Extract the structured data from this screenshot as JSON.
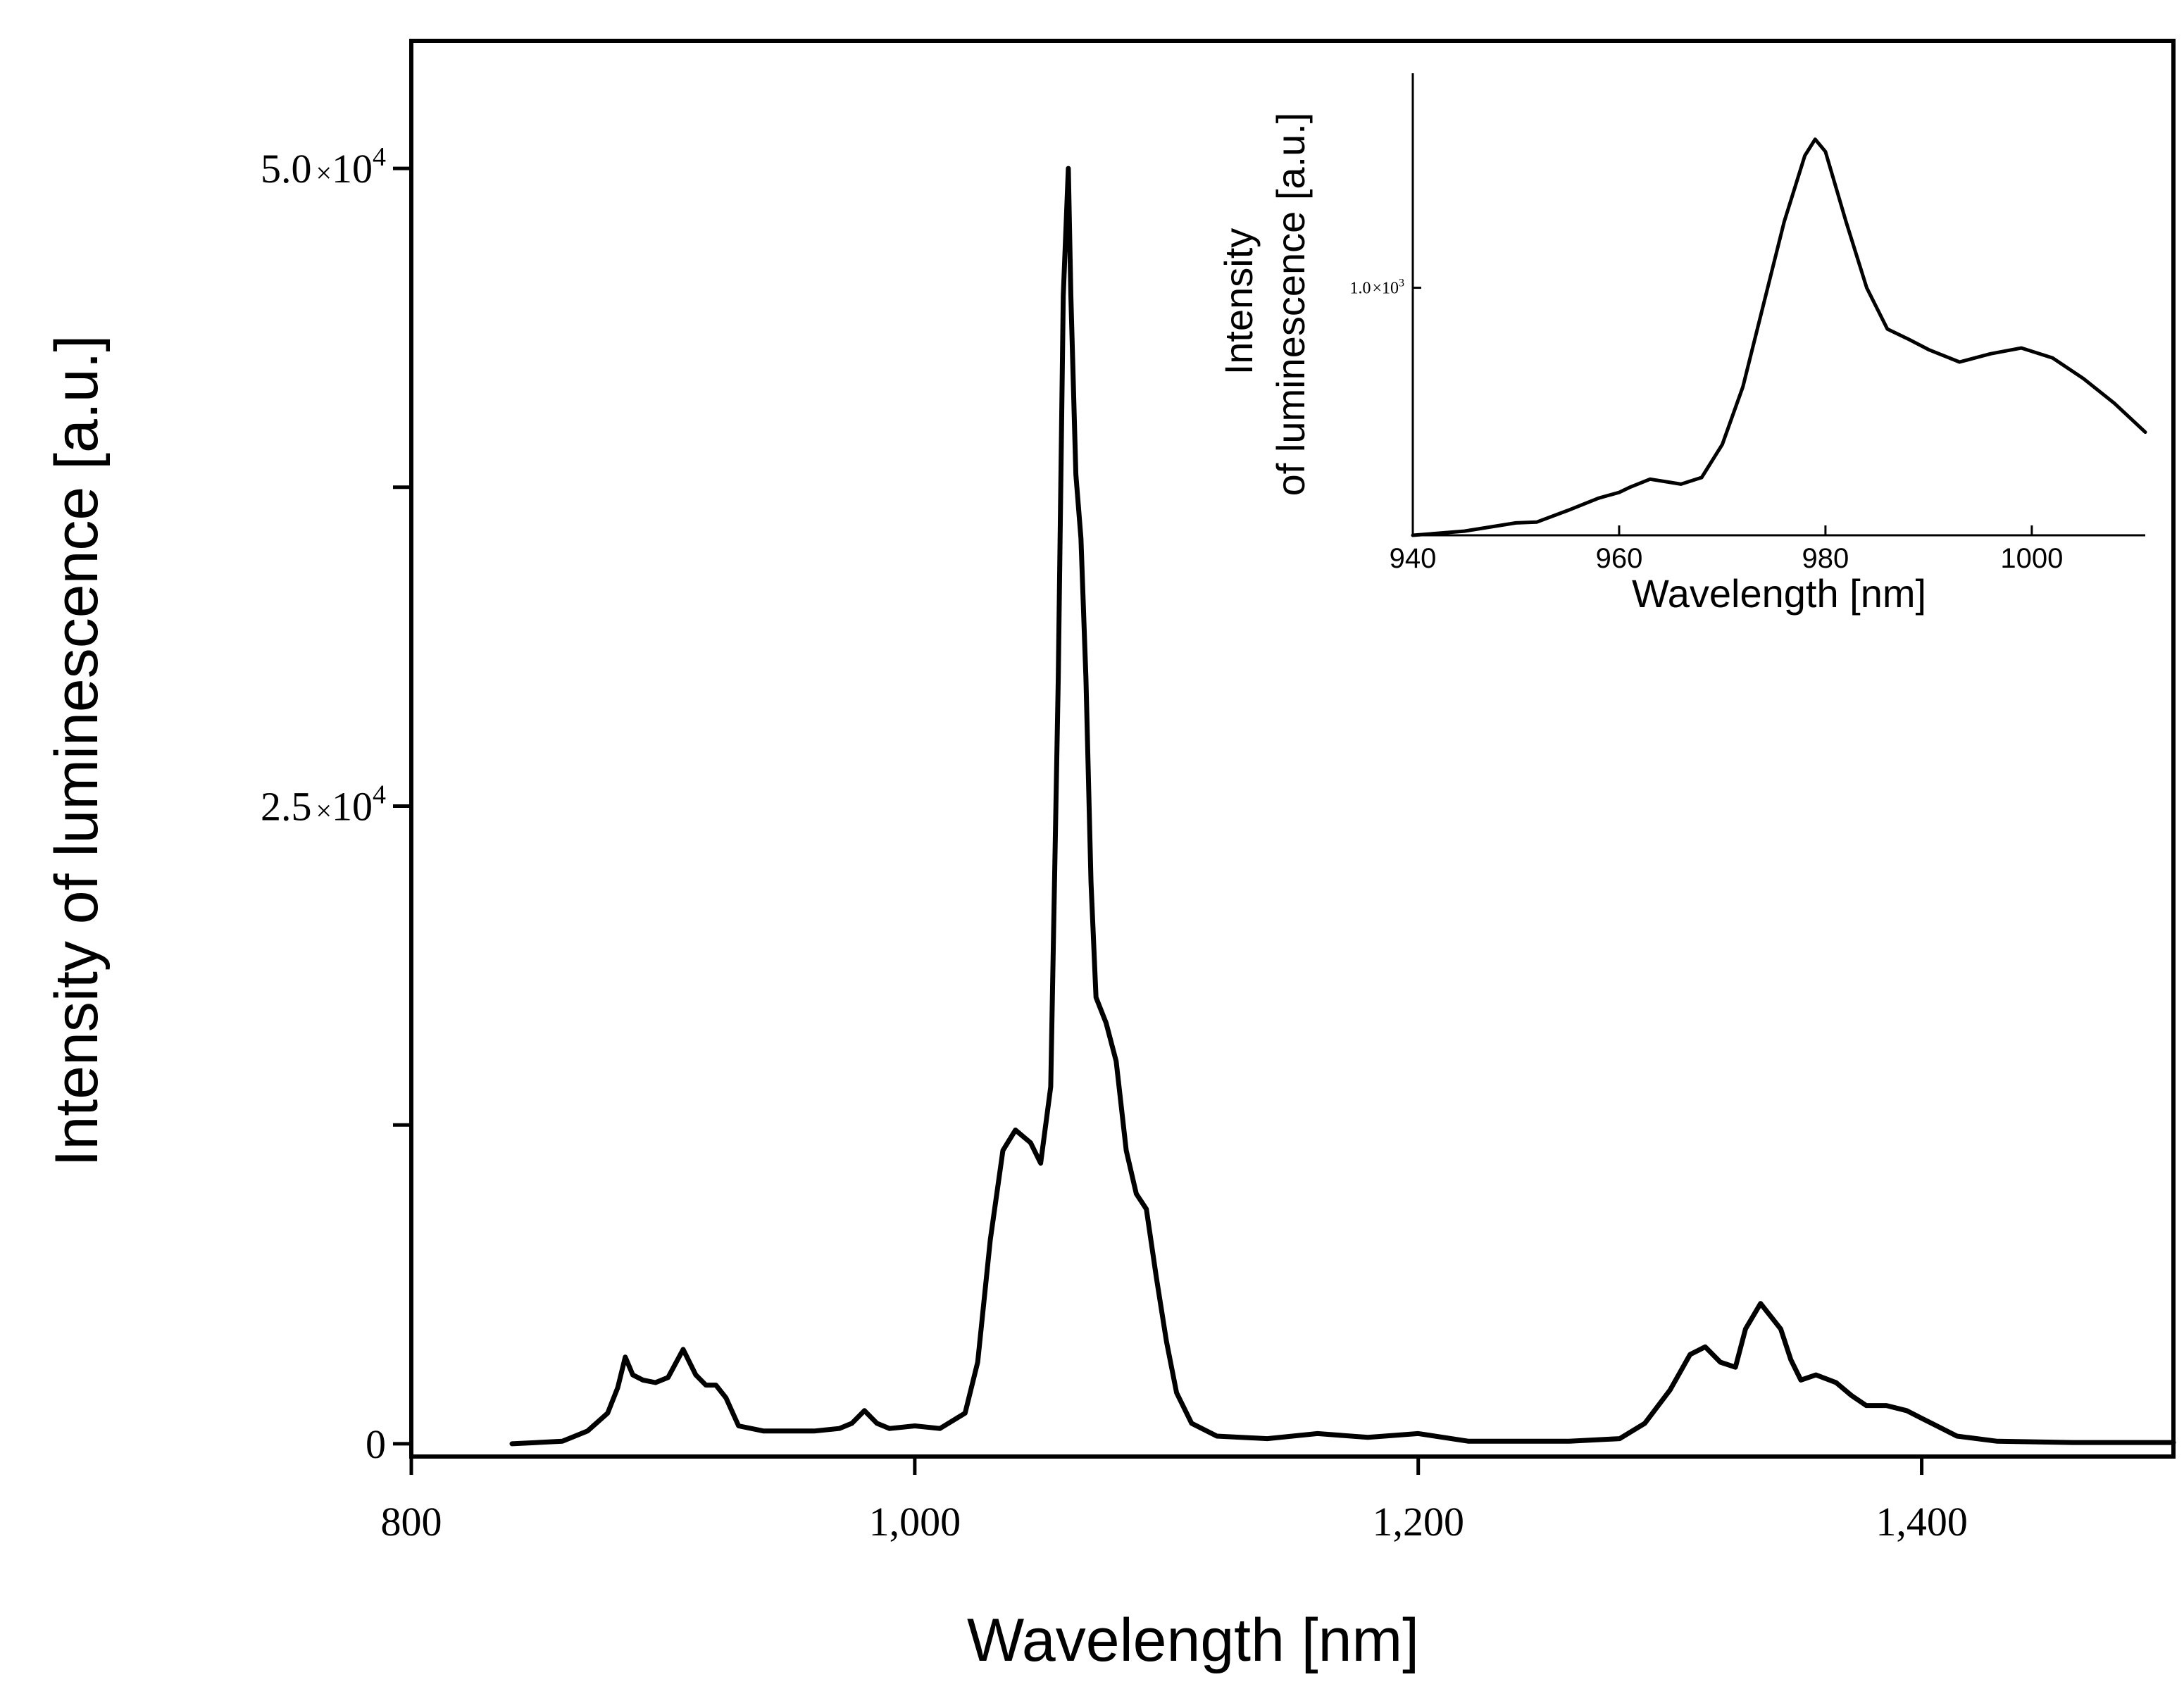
{
  "chart_data": [
    {
      "type": "line",
      "name": "main-spectrum",
      "xlabel": "Wavelength [nm]",
      "ylabel": "Intensity of luminescence [a.u.]",
      "xlim": [
        800,
        1500
      ],
      "ylim": [
        -500,
        55000
      ],
      "x_ticks": [
        800,
        1000,
        1200,
        1400
      ],
      "x_tick_labels": [
        "800",
        "1,000",
        "1,200",
        "1,400"
      ],
      "y_ticks": [
        0,
        12500,
        25000,
        37500,
        50000
      ],
      "y_tick_labels": [
        {
          "value": 0,
          "mantissa": "0",
          "times": "",
          "base": "",
          "exponent": ""
        },
        {
          "value": 25000,
          "mantissa": "2.5",
          "times": "×",
          "base": "10",
          "exponent": "4"
        },
        {
          "value": 50000,
          "mantissa": "5.0",
          "times": "×",
          "base": "10",
          "exponent": "4"
        }
      ],
      "series": [
        {
          "name": "luminescence",
          "x": [
            840,
            860,
            870,
            878,
            882,
            885,
            888,
            892,
            897,
            902,
            908,
            913,
            917,
            921,
            925,
            930,
            940,
            960,
            970,
            975,
            980,
            985,
            990,
            1000,
            1010,
            1020,
            1025,
            1030,
            1035,
            1040,
            1046,
            1050,
            1054,
            1057,
            1059,
            1061,
            1062,
            1064,
            1066,
            1068,
            1070,
            1072,
            1076,
            1080,
            1084,
            1088,
            1092,
            1096,
            1100,
            1104,
            1110,
            1120,
            1140,
            1160,
            1180,
            1200,
            1220,
            1260,
            1280,
            1290,
            1300,
            1308,
            1314,
            1320,
            1326,
            1330,
            1336,
            1340,
            1344,
            1348,
            1352,
            1358,
            1366,
            1372,
            1378,
            1386,
            1394,
            1400,
            1406,
            1414,
            1430,
            1460,
            1500
          ],
          "y": [
            0,
            100,
            500,
            1200,
            2200,
            3400,
            2700,
            2500,
            2400,
            2600,
            3700,
            2700,
            2300,
            2300,
            1800,
            700,
            500,
            500,
            600,
            800,
            1300,
            800,
            600,
            700,
            600,
            1200,
            3200,
            8000,
            11500,
            12300,
            11800,
            11000,
            14000,
            30000,
            45000,
            50000,
            45000,
            38000,
            35500,
            30000,
            22000,
            17500,
            16500,
            15000,
            11500,
            9800,
            9200,
            6500,
            4000,
            2000,
            800,
            300,
            200,
            400,
            250,
            400,
            100,
            100,
            200,
            800,
            2100,
            3500,
            3800,
            3200,
            3000,
            4500,
            5500,
            5000,
            4500,
            3300,
            2500,
            2700,
            2400,
            1900,
            1500,
            1500,
            1300,
            1000,
            700,
            300,
            100,
            50,
            50
          ]
        }
      ]
    },
    {
      "type": "line",
      "name": "inset-spectrum",
      "xlabel": "Wavelength [nm]",
      "ylabel_lines": [
        "Intensity",
        "of luminescence [a.u.]"
      ],
      "xlim": [
        940,
        1011
      ],
      "ylim": [
        700,
        1260
      ],
      "x_ticks": [
        940,
        960,
        980,
        1000
      ],
      "x_tick_labels": [
        "940",
        "960",
        "980",
        "1000"
      ],
      "y_ticks": [
        1000
      ],
      "y_tick_labels": [
        {
          "value": 1000,
          "mantissa": "1.0",
          "times": "×",
          "base": "10",
          "exponent": "3"
        }
      ],
      "series": [
        {
          "name": "luminescence-zoom",
          "x": [
            940,
            945,
            950,
            952,
            955,
            958,
            960,
            961,
            963,
            965,
            966,
            968,
            970,
            972,
            974,
            976,
            978,
            979,
            980,
            982,
            984,
            986,
            988,
            990,
            993,
            996,
            999,
            1002,
            1005,
            1008,
            1011
          ],
          "y": [
            700,
            705,
            715,
            716,
            730,
            745,
            752,
            758,
            768,
            764,
            762,
            770,
            810,
            880,
            980,
            1080,
            1160,
            1180,
            1165,
            1080,
            1000,
            950,
            938,
            925,
            910,
            920,
            927,
            915,
            890,
            860,
            825
          ]
        }
      ]
    }
  ]
}
